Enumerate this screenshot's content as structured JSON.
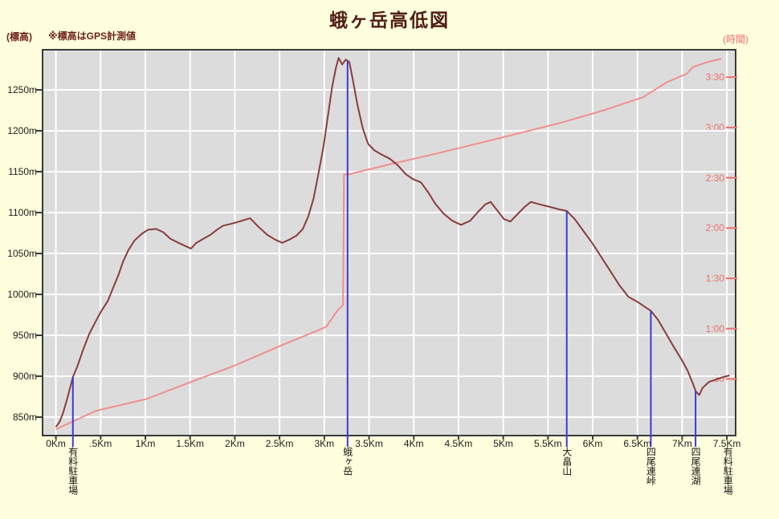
{
  "page": {
    "title": "蛾ヶ岳高低図",
    "note": "※標高はGPS計測値",
    "left_axis_unit": "(標高)",
    "right_axis_unit": "(時間)"
  },
  "colors": {
    "page_background": "#ffffdd",
    "plot_background": "#dcdcdc",
    "gridline": "#ffffff",
    "plot_border": "#3a3a3a",
    "elevation_line": "#8b3c3c",
    "time_line": "#f08e8e",
    "time_axis_text": "#ee6f6f",
    "marker_line": "#3a3ad2",
    "title_text": "#4f1d15"
  },
  "chart_data": {
    "type": "line",
    "title": "蛾ヶ岳高低図",
    "note": "※標高はGPS計測値",
    "x_axis": {
      "unit": "Km",
      "range_km": [
        0,
        7.5
      ],
      "ticks": [
        "0Km",
        ".5Km",
        "1Km",
        "1.5Km",
        "2Km",
        "2.5Km",
        "3Km",
        "3.5Km",
        "4Km",
        "4.5Km",
        "5Km",
        "5.5Km",
        "6Km",
        "6.5Km",
        "7Km",
        "7.5Km"
      ],
      "tick_km": [
        0,
        0.5,
        1,
        1.5,
        2,
        2.5,
        3,
        3.5,
        4,
        4.5,
        5,
        5.5,
        6,
        6.5,
        7,
        7.5
      ]
    },
    "y_left_axis": {
      "unit_label": "(標高)",
      "unit": "m",
      "range_m": [
        830,
        1300
      ],
      "ticks": [
        "850m",
        "900m",
        "950m",
        "1000m",
        "1050m",
        "1100m",
        "1150m",
        "1200m",
        "1250m"
      ],
      "tick_m": [
        850,
        900,
        950,
        1000,
        1050,
        1100,
        1150,
        1200,
        1250
      ]
    },
    "y_right_axis": {
      "unit_label": "(時間)",
      "ticks": [
        ":30",
        "1:00",
        "1:30",
        "2:00",
        "2:30",
        "3:00",
        "3:30"
      ],
      "tick_min": [
        30,
        60,
        90,
        120,
        150,
        180,
        210
      ]
    },
    "legend": "none",
    "grid": true,
    "series": [
      {
        "name": "elevation_profile",
        "axis": "left",
        "color": "#8b3c3c",
        "points_km_m": [
          [
            0.0,
            838
          ],
          [
            0.04,
            844
          ],
          [
            0.08,
            855
          ],
          [
            0.13,
            874
          ],
          [
            0.19,
            899
          ],
          [
            0.24,
            912
          ],
          [
            0.3,
            931
          ],
          [
            0.37,
            951
          ],
          [
            0.44,
            966
          ],
          [
            0.51,
            980
          ],
          [
            0.58,
            992
          ],
          [
            0.64,
            1008
          ],
          [
            0.7,
            1024
          ],
          [
            0.75,
            1040
          ],
          [
            0.81,
            1054
          ],
          [
            0.88,
            1066
          ],
          [
            0.96,
            1074
          ],
          [
            1.03,
            1079
          ],
          [
            1.12,
            1080
          ],
          [
            1.2,
            1076
          ],
          [
            1.28,
            1068
          ],
          [
            1.37,
            1063
          ],
          [
            1.45,
            1059
          ],
          [
            1.51,
            1056
          ],
          [
            1.57,
            1063
          ],
          [
            1.65,
            1068
          ],
          [
            1.73,
            1073
          ],
          [
            1.8,
            1079
          ],
          [
            1.87,
            1084
          ],
          [
            1.95,
            1086
          ],
          [
            2.05,
            1089
          ],
          [
            2.17,
            1093
          ],
          [
            2.26,
            1083
          ],
          [
            2.36,
            1073
          ],
          [
            2.45,
            1067
          ],
          [
            2.53,
            1063
          ],
          [
            2.61,
            1067
          ],
          [
            2.69,
            1072
          ],
          [
            2.76,
            1080
          ],
          [
            2.82,
            1095
          ],
          [
            2.88,
            1117
          ],
          [
            2.93,
            1145
          ],
          [
            2.99,
            1180
          ],
          [
            3.04,
            1218
          ],
          [
            3.09,
            1255
          ],
          [
            3.13,
            1277
          ],
          [
            3.16,
            1289
          ],
          [
            3.2,
            1281
          ],
          [
            3.24,
            1287
          ],
          [
            3.28,
            1284
          ],
          [
            3.32,
            1262
          ],
          [
            3.37,
            1232
          ],
          [
            3.43,
            1203
          ],
          [
            3.49,
            1184
          ],
          [
            3.56,
            1176
          ],
          [
            3.64,
            1171
          ],
          [
            3.73,
            1166
          ],
          [
            3.82,
            1158
          ],
          [
            3.91,
            1147
          ],
          [
            3.99,
            1141
          ],
          [
            4.08,
            1137
          ],
          [
            4.16,
            1125
          ],
          [
            4.24,
            1111
          ],
          [
            4.33,
            1099
          ],
          [
            4.43,
            1090
          ],
          [
            4.53,
            1085
          ],
          [
            4.63,
            1090
          ],
          [
            4.72,
            1101
          ],
          [
            4.8,
            1110
          ],
          [
            4.86,
            1113
          ],
          [
            4.93,
            1103
          ],
          [
            5.01,
            1092
          ],
          [
            5.08,
            1089
          ],
          [
            5.16,
            1098
          ],
          [
            5.24,
            1107
          ],
          [
            5.31,
            1113
          ],
          [
            5.41,
            1110
          ],
          [
            5.52,
            1107
          ],
          [
            5.62,
            1104
          ],
          [
            5.71,
            1102
          ],
          [
            5.8,
            1092
          ],
          [
            5.9,
            1077
          ],
          [
            6.0,
            1062
          ],
          [
            6.1,
            1045
          ],
          [
            6.2,
            1028
          ],
          [
            6.3,
            1011
          ],
          [
            6.4,
            997
          ],
          [
            6.5,
            991
          ],
          [
            6.58,
            985
          ],
          [
            6.65,
            980
          ],
          [
            6.73,
            969
          ],
          [
            6.81,
            954
          ],
          [
            6.9,
            937
          ],
          [
            6.99,
            921
          ],
          [
            7.06,
            907
          ],
          [
            7.12,
            891
          ],
          [
            7.15,
            882
          ],
          [
            7.19,
            877
          ],
          [
            7.23,
            886
          ],
          [
            7.3,
            893
          ],
          [
            7.38,
            896
          ],
          [
            7.46,
            899
          ],
          [
            7.53,
            901
          ]
        ]
      },
      {
        "name": "elapsed_time",
        "axis": "right",
        "color": "#f08e8e",
        "points_km_min": [
          [
            0.0,
            0
          ],
          [
            0.45,
            11
          ],
          [
            1.01,
            18
          ],
          [
            1.5,
            28
          ],
          [
            2.0,
            38
          ],
          [
            2.52,
            50
          ],
          [
            3.02,
            61
          ],
          [
            3.15,
            71
          ],
          [
            3.21,
            74
          ],
          [
            3.22,
            152
          ],
          [
            3.27,
            152
          ],
          [
            3.73,
            158
          ],
          [
            4.22,
            164
          ],
          [
            4.76,
            171
          ],
          [
            5.21,
            177
          ],
          [
            5.66,
            183
          ],
          [
            6.11,
            190
          ],
          [
            6.56,
            198
          ],
          [
            6.83,
            207
          ],
          [
            7.05,
            212
          ],
          [
            7.12,
            216
          ],
          [
            7.28,
            219
          ],
          [
            7.44,
            221
          ]
        ]
      }
    ],
    "markers": [
      {
        "km": 0.19,
        "top_m": 899,
        "label": "有料駐車場",
        "line": true
      },
      {
        "km": 3.26,
        "top_m": 1285,
        "label": "蛾ヶ岳",
        "line": true
      },
      {
        "km": 5.71,
        "top_m": 1102,
        "label": "大畠山",
        "line": true
      },
      {
        "km": 6.65,
        "top_m": 980,
        "label": "四尾連峠",
        "line": true
      },
      {
        "km": 7.15,
        "top_m": 882,
        "label": "四尾連湖",
        "line": true
      },
      {
        "km": 7.51,
        "top_m": null,
        "label": "有料駐車場",
        "line": false
      }
    ]
  }
}
